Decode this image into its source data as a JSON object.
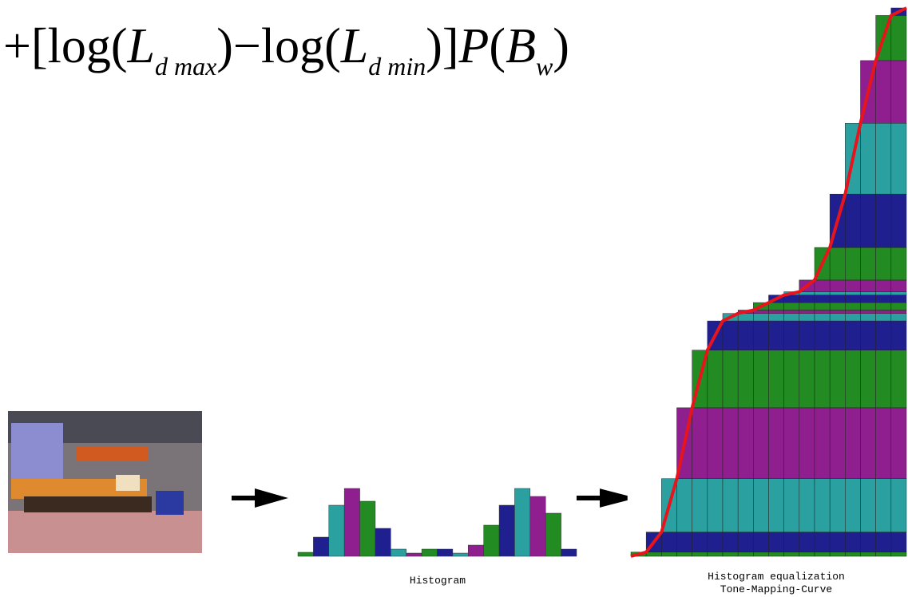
{
  "formula": {
    "parts": [
      "+[log(",
      "L",
      "d max",
      ")−log(",
      "L",
      "d min",
      ")]",
      "P",
      "(",
      "B",
      "w",
      ")"
    ]
  },
  "chart_data": {
    "type": "bar",
    "title": "Histogram",
    "values": [
      5,
      24,
      64,
      85,
      69,
      35,
      9,
      4,
      9,
      9,
      4,
      14,
      39,
      64,
      85,
      75,
      54,
      9
    ],
    "colors": [
      "#228b22",
      "#1f1f8f",
      "#2aa0a0",
      "#8f1f8f"
    ],
    "equalized": {
      "title": "Histogram equalization",
      "curve_label": "Tone-Mapping-Curve",
      "curve_color": "#e8141c"
    }
  }
}
